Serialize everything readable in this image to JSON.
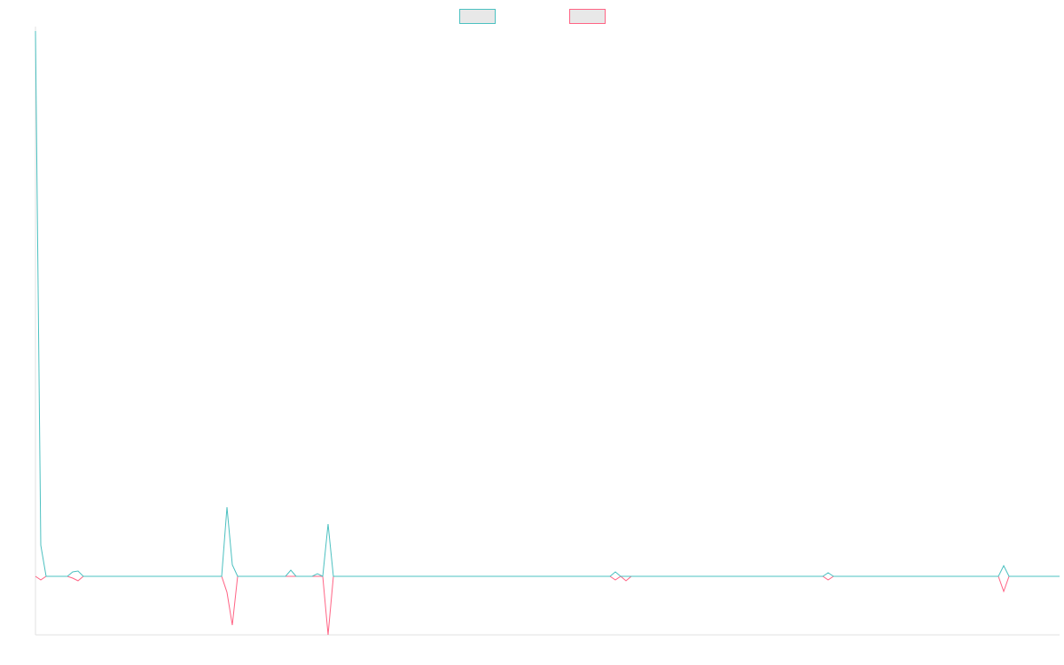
{
  "chart_data": {
    "type": "line",
    "x": [
      0,
      1,
      2,
      6,
      7,
      8,
      9,
      35,
      36,
      37,
      38,
      47,
      48,
      49,
      52,
      53,
      54,
      55,
      56,
      108,
      109,
      110,
      111,
      112,
      148,
      149,
      150,
      181,
      182,
      183,
      192.5
    ],
    "series": [
      {
        "color": "#4bc0c0",
        "values": [
          61.5,
          3.5,
          0,
          0,
          0.5,
          0.6,
          0,
          0,
          7.8,
          1.3,
          0,
          0,
          0.7,
          0,
          0,
          0.3,
          0,
          5.9,
          0,
          0,
          0.5,
          0,
          0,
          0,
          0,
          0.4,
          0,
          0,
          1.2,
          0,
          0
        ]
      },
      {
        "color": "#ff6384",
        "values": [
          0,
          -0.4,
          0,
          0,
          -0.2,
          -0.5,
          0,
          0,
          -1.8,
          -5.5,
          0,
          0,
          0,
          0,
          0,
          0,
          0,
          -6.6,
          0,
          0,
          -0.4,
          0,
          -0.5,
          0,
          0,
          -0.4,
          0,
          0,
          -1.7,
          0,
          0
        ]
      }
    ],
    "xlim": [
      0,
      192.5
    ],
    "ylim": [
      -6.6,
      61.5
    ]
  }
}
